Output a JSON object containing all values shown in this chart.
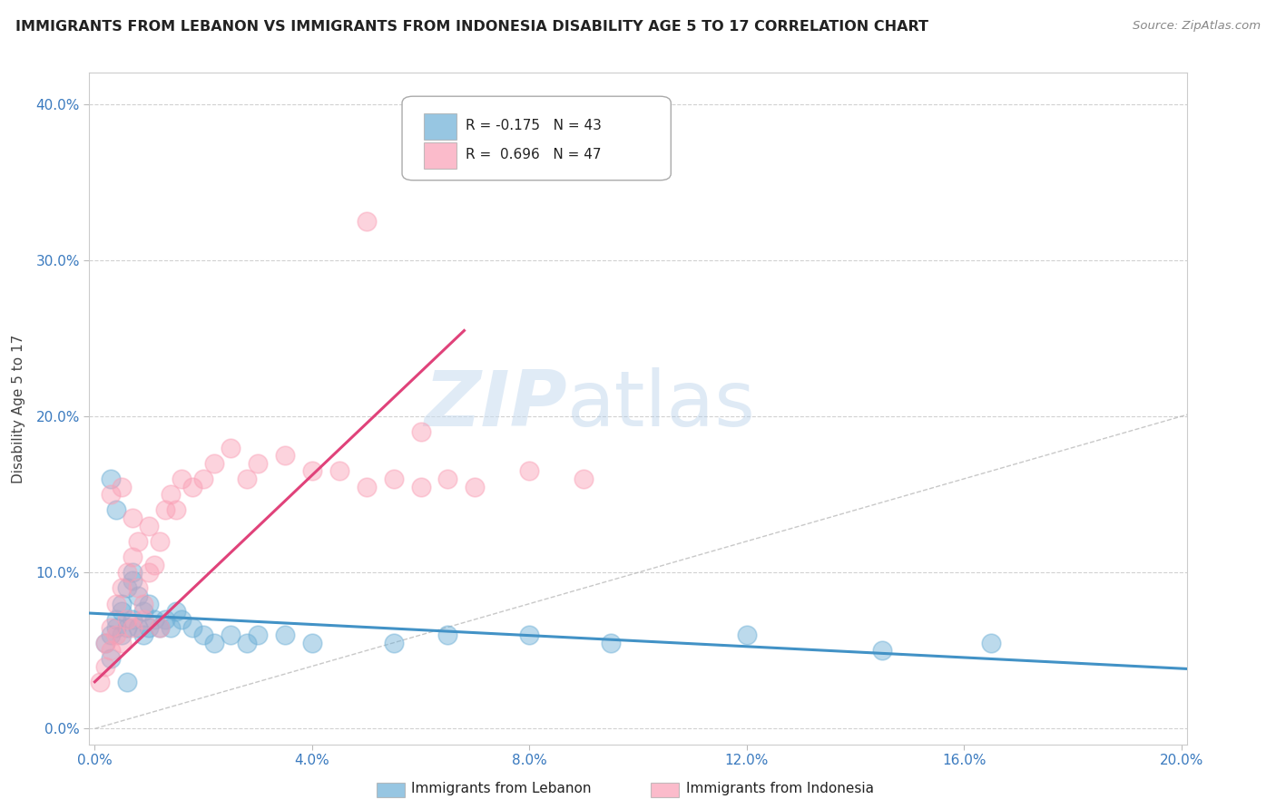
{
  "title": "IMMIGRANTS FROM LEBANON VS IMMIGRANTS FROM INDONESIA DISABILITY AGE 5 TO 17 CORRELATION CHART",
  "source": "Source: ZipAtlas.com",
  "ylabel_label": "Disability Age 5 to 17",
  "xlim": [
    -0.001,
    0.201
  ],
  "ylim": [
    -0.01,
    0.42
  ],
  "xticks": [
    0.0,
    0.04,
    0.08,
    0.12,
    0.16,
    0.2
  ],
  "yticks": [
    0.0,
    0.1,
    0.2,
    0.3,
    0.4
  ],
  "xtick_labels": [
    "0.0%",
    "4.0%",
    "8.0%",
    "12.0%",
    "16.0%",
    "20.0%"
  ],
  "ytick_labels": [
    "0.0%",
    "10.0%",
    "20.0%",
    "30.0%",
    "40.0%"
  ],
  "color_lebanon": "#6baed6",
  "color_indonesia": "#fa9fb5",
  "color_leb_line": "#4292c6",
  "color_ind_line": "#e0427a",
  "watermark_zip": "ZIP",
  "watermark_atlas": "atlas",
  "lebanon_x": [
    0.002,
    0.003,
    0.003,
    0.004,
    0.004,
    0.005,
    0.005,
    0.005,
    0.006,
    0.006,
    0.007,
    0.007,
    0.007,
    0.008,
    0.008,
    0.009,
    0.009,
    0.01,
    0.01,
    0.011,
    0.012,
    0.013,
    0.014,
    0.015,
    0.016,
    0.018,
    0.02,
    0.022,
    0.025,
    0.028,
    0.03,
    0.035,
    0.04,
    0.055,
    0.065,
    0.08,
    0.095,
    0.12,
    0.145,
    0.165,
    0.003,
    0.006,
    0.004
  ],
  "lebanon_y": [
    0.055,
    0.06,
    0.045,
    0.065,
    0.07,
    0.075,
    0.06,
    0.08,
    0.065,
    0.09,
    0.095,
    0.07,
    0.1,
    0.065,
    0.085,
    0.06,
    0.075,
    0.065,
    0.08,
    0.07,
    0.065,
    0.07,
    0.065,
    0.075,
    0.07,
    0.065,
    0.06,
    0.055,
    0.06,
    0.055,
    0.06,
    0.06,
    0.055,
    0.055,
    0.06,
    0.06,
    0.055,
    0.06,
    0.05,
    0.055,
    0.16,
    0.03,
    0.14
  ],
  "indonesia_x": [
    0.001,
    0.002,
    0.002,
    0.003,
    0.003,
    0.004,
    0.004,
    0.005,
    0.005,
    0.006,
    0.006,
    0.007,
    0.007,
    0.008,
    0.008,
    0.009,
    0.01,
    0.01,
    0.011,
    0.012,
    0.013,
    0.014,
    0.015,
    0.016,
    0.018,
    0.02,
    0.022,
    0.025,
    0.028,
    0.03,
    0.035,
    0.04,
    0.045,
    0.05,
    0.055,
    0.06,
    0.065,
    0.07,
    0.08,
    0.09,
    0.003,
    0.005,
    0.007,
    0.009,
    0.012,
    0.05,
    0.06
  ],
  "indonesia_y": [
    0.03,
    0.04,
    0.055,
    0.05,
    0.065,
    0.06,
    0.08,
    0.055,
    0.09,
    0.07,
    0.1,
    0.065,
    0.11,
    0.09,
    0.12,
    0.08,
    0.1,
    0.13,
    0.105,
    0.12,
    0.14,
    0.15,
    0.14,
    0.16,
    0.155,
    0.16,
    0.17,
    0.18,
    0.16,
    0.17,
    0.175,
    0.165,
    0.165,
    0.155,
    0.16,
    0.155,
    0.16,
    0.155,
    0.165,
    0.16,
    0.15,
    0.155,
    0.135,
    0.07,
    0.065,
    0.325,
    0.19
  ]
}
